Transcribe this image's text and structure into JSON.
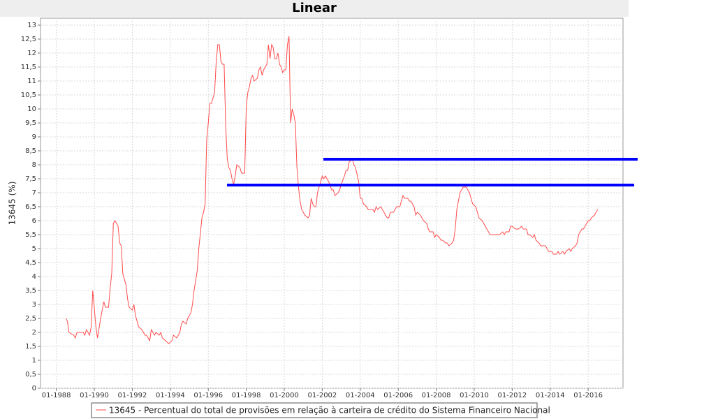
{
  "chart_data": {
    "type": "line",
    "title": "Linear",
    "y_label": "13645 (%)",
    "grid": true,
    "legend": "bottom",
    "xlim": [
      "1987-03",
      "2017-11"
    ],
    "ylim": [
      0,
      13.25
    ],
    "xticks": [
      {
        "value": "1988-01",
        "label": "01-1988"
      },
      {
        "value": "1990-01",
        "label": "01-1990"
      },
      {
        "value": "1992-01",
        "label": "01-1992"
      },
      {
        "value": "1994-01",
        "label": "01-1994"
      },
      {
        "value": "1996-01",
        "label": "01-1996"
      },
      {
        "value": "1998-01",
        "label": "01-1998"
      },
      {
        "value": "2000-01",
        "label": "01-2000"
      },
      {
        "value": "2002-01",
        "label": "01-2002"
      },
      {
        "value": "2004-01",
        "label": "01-2004"
      },
      {
        "value": "2006-01",
        "label": "01-2006"
      },
      {
        "value": "2008-01",
        "label": "01-2008"
      },
      {
        "value": "2010-01",
        "label": "01-2010"
      },
      {
        "value": "2012-01",
        "label": "01-2012"
      },
      {
        "value": "2014-01",
        "label": "01-2014"
      },
      {
        "value": "2016-01",
        "label": "01-2016"
      }
    ],
    "yticks": [
      0,
      {
        "value": 0.5,
        "label": "0,5"
      },
      1,
      {
        "value": 1.5,
        "label": "1,5"
      },
      2,
      {
        "value": 2.5,
        "label": "2,5"
      },
      3,
      {
        "value": 3.5,
        "label": "3,5"
      },
      4,
      {
        "value": 4.5,
        "label": "4,5"
      },
      5,
      {
        "value": 5.5,
        "label": "5,5"
      },
      6,
      {
        "value": 6.5,
        "label": "6,5"
      },
      7,
      {
        "value": 7.5,
        "label": "7,5"
      },
      8,
      {
        "value": 8.5,
        "label": "8,5"
      },
      9,
      {
        "value": 9.5,
        "label": "9,5"
      },
      10,
      {
        "value": 10.5,
        "label": "10,5"
      },
      11,
      {
        "value": 11.5,
        "label": "11,5"
      },
      12,
      {
        "value": 12.5,
        "label": "12,5"
      },
      13
    ],
    "x": [
      "1988-07",
      "1988-08",
      "1988-09",
      "1988-12",
      "1989-01",
      "1989-02",
      "1989-06",
      "1989-07",
      "1989-08",
      "1989-10",
      "1989-11",
      "1989-12",
      "1990-02",
      "1990-03",
      "1990-05",
      "1990-07",
      "1990-08",
      "1990-10",
      "1990-11",
      "1990-12",
      "1991-01",
      "1991-02",
      "1991-04",
      "1991-05",
      "1991-06",
      "1991-07",
      "1991-09",
      "1991-10",
      "1991-11",
      "1992-01",
      "1992-02",
      "1992-03",
      "1992-04",
      "1992-05",
      "1992-07",
      "1992-09",
      "1992-10",
      "1992-12",
      "1993-01",
      "1993-03",
      "1993-04",
      "1993-06",
      "1993-07",
      "1993-08",
      "1993-10",
      "1993-12",
      "1994-02",
      "1994-03",
      "1994-05",
      "1994-07",
      "1994-08",
      "1994-09",
      "1994-11",
      "1994-12",
      "1995-02",
      "1995-03",
      "1995-04",
      "1995-06",
      "1995-07",
      "1995-09",
      "1995-10",
      "1995-11",
      "1995-12",
      "1996-01",
      "1996-02",
      "1996-03",
      "1996-05",
      "1996-06",
      "1996-07",
      "1996-08",
      "1996-09",
      "1996-10",
      "1996-11",
      "1996-12",
      "1997-01",
      "1997-02",
      "1997-03",
      "1997-04",
      "1997-05",
      "1997-06",
      "1997-07",
      "1997-09",
      "1997-10",
      "1997-12",
      "1998-01",
      "1998-02",
      "1998-03",
      "1998-04",
      "1998-05",
      "1998-06",
      "1998-08",
      "1998-09",
      "1998-10",
      "1998-11",
      "1998-12",
      "1999-02",
      "1999-03",
      "1999-04",
      "1999-05",
      "1999-06",
      "1999-07",
      "1999-08",
      "1999-09",
      "1999-10",
      "1999-11",
      "1999-12",
      "2000-01",
      "2000-02",
      "2000-03",
      "2000-04",
      "2000-05",
      "2000-06",
      "2000-07",
      "2000-08",
      "2000-09",
      "2000-10",
      "2000-11",
      "2000-12",
      "2001-01",
      "2001-02",
      "2001-04",
      "2001-05",
      "2001-06",
      "2001-07",
      "2001-08",
      "2001-09",
      "2001-10",
      "2001-12",
      "2002-01",
      "2002-02",
      "2002-03",
      "2002-04",
      "2002-05",
      "2002-07",
      "2002-08",
      "2002-09",
      "2002-11",
      "2002-12",
      "2003-01",
      "2003-03",
      "2003-04",
      "2003-05",
      "2003-06",
      "2003-08",
      "2003-09",
      "2003-10",
      "2003-12",
      "2004-01",
      "2004-02",
      "2004-03",
      "2004-05",
      "2004-06",
      "2004-07",
      "2004-09",
      "2004-10",
      "2004-11",
      "2004-12",
      "2005-02",
      "2005-03",
      "2005-04",
      "2005-06",
      "2005-07",
      "2005-08",
      "2005-10",
      "2005-11",
      "2005-12",
      "2006-02",
      "2006-03",
      "2006-04",
      "2006-05",
      "2006-07",
      "2006-08",
      "2006-09",
      "2006-11",
      "2006-12",
      "2007-01",
      "2007-03",
      "2007-04",
      "2007-05",
      "2007-07",
      "2007-08",
      "2007-09",
      "2007-11",
      "2007-12",
      "2008-01",
      "2008-03",
      "2008-04",
      "2008-05",
      "2008-07",
      "2008-08",
      "2008-09",
      "2008-11",
      "2008-12",
      "2009-01",
      "2009-02",
      "2009-03",
      "2009-04",
      "2009-06",
      "2009-07",
      "2009-08",
      "2009-10",
      "2009-11",
      "2009-12",
      "2010-02",
      "2010-03",
      "2010-04",
      "2010-06",
      "2010-07",
      "2010-08",
      "2010-10",
      "2010-11",
      "2011-01",
      "2011-03",
      "2011-05",
      "2011-07",
      "2011-08",
      "2011-09",
      "2011-11",
      "2011-12",
      "2012-01",
      "2012-03",
      "2012-05",
      "2012-07",
      "2012-08",
      "2012-10",
      "2012-11",
      "2012-12",
      "2013-02",
      "2013-03",
      "2013-04",
      "2013-06",
      "2013-07",
      "2013-10",
      "2013-11",
      "2013-12",
      "2014-02",
      "2014-03",
      "2014-05",
      "2014-06",
      "2014-07",
      "2014-09",
      "2014-10",
      "2014-11",
      "2015-01",
      "2015-02",
      "2015-03",
      "2015-05",
      "2015-06",
      "2015-07",
      "2015-09",
      "2015-10",
      "2015-11",
      "2016-01",
      "2016-02",
      "2016-03",
      "2016-05",
      "2016-06",
      "2016-07"
    ],
    "series": [
      {
        "name": "13645 - Percentual do total de provisões em relação à carteira de crédito do Sistema Financeiro Nacional",
        "color": "#ff4c4c",
        "values": [
          2.5,
          2.4,
          2.0,
          1.9,
          1.8,
          2.0,
          2.0,
          1.9,
          2.1,
          1.9,
          2.2,
          3.5,
          2.2,
          1.8,
          2.5,
          3.1,
          2.9,
          2.9,
          3.6,
          4.1,
          5.9,
          6.0,
          5.8,
          5.2,
          5.1,
          4.1,
          3.7,
          3.2,
          2.9,
          2.8,
          3.0,
          2.6,
          2.4,
          2.2,
          2.1,
          1.9,
          1.9,
          1.7,
          2.1,
          1.9,
          2.0,
          1.9,
          2.0,
          1.8,
          1.7,
          1.6,
          1.7,
          1.9,
          1.8,
          2.0,
          2.3,
          2.4,
          2.3,
          2.5,
          2.7,
          3.0,
          3.5,
          4.2,
          5.0,
          6.1,
          6.3,
          6.6,
          8.9,
          9.5,
          10.2,
          10.2,
          10.6,
          11.7,
          12.3,
          12.3,
          11.7,
          11.6,
          11.6,
          9.4,
          8.2,
          7.9,
          7.8,
          7.5,
          7.3,
          7.6,
          8.0,
          7.9,
          7.7,
          7.7,
          10.1,
          10.6,
          10.8,
          11.1,
          11.2,
          11.0,
          11.1,
          11.4,
          11.5,
          11.2,
          11.4,
          11.6,
          12.3,
          11.8,
          12.3,
          12.2,
          11.8,
          11.8,
          12.0,
          11.6,
          11.5,
          11.3,
          11.4,
          11.4,
          12.3,
          12.6,
          9.5,
          10.0,
          9.8,
          9.5,
          7.9,
          7.2,
          6.7,
          6.4,
          6.3,
          6.2,
          6.1,
          6.2,
          6.8,
          6.6,
          6.5,
          6.5,
          7.0,
          7.4,
          7.6,
          7.5,
          7.6,
          7.5,
          7.4,
          7.1,
          7.1,
          6.9,
          7.0,
          7.1,
          7.3,
          7.6,
          7.8,
          7.8,
          8.1,
          8.2,
          8.0,
          7.9,
          7.4,
          6.8,
          6.8,
          6.6,
          6.5,
          6.4,
          6.4,
          6.4,
          6.3,
          6.5,
          6.4,
          6.5,
          6.4,
          6.3,
          6.1,
          6.1,
          6.3,
          6.3,
          6.4,
          6.5,
          6.5,
          6.7,
          6.9,
          6.8,
          6.8,
          6.7,
          6.7,
          6.5,
          6.2,
          6.3,
          6.2,
          6.1,
          6.0,
          5.9,
          5.7,
          5.6,
          5.6,
          5.4,
          5.5,
          5.4,
          5.3,
          5.3,
          5.2,
          5.2,
          5.1,
          5.2,
          5.3,
          5.7,
          6.4,
          6.7,
          7.0,
          7.2,
          7.2,
          7.2,
          7.0,
          6.8,
          6.6,
          6.5,
          6.3,
          6.1,
          6.0,
          5.9,
          5.8,
          5.6,
          5.5,
          5.5,
          5.5,
          5.5,
          5.6,
          5.5,
          5.6,
          5.6,
          5.8,
          5.8,
          5.7,
          5.7,
          5.8,
          5.7,
          5.7,
          5.5,
          5.5,
          5.4,
          5.5,
          5.3,
          5.2,
          5.1,
          5.1,
          5.0,
          4.9,
          4.9,
          4.8,
          4.8,
          4.9,
          4.8,
          4.9,
          4.8,
          4.9,
          5.0,
          4.9,
          5.0,
          5.1,
          5.2,
          5.5,
          5.7,
          5.7,
          5.8,
          6.0,
          6.0,
          6.1,
          6.2,
          6.3,
          6.4
        ]
      }
    ]
  }
}
